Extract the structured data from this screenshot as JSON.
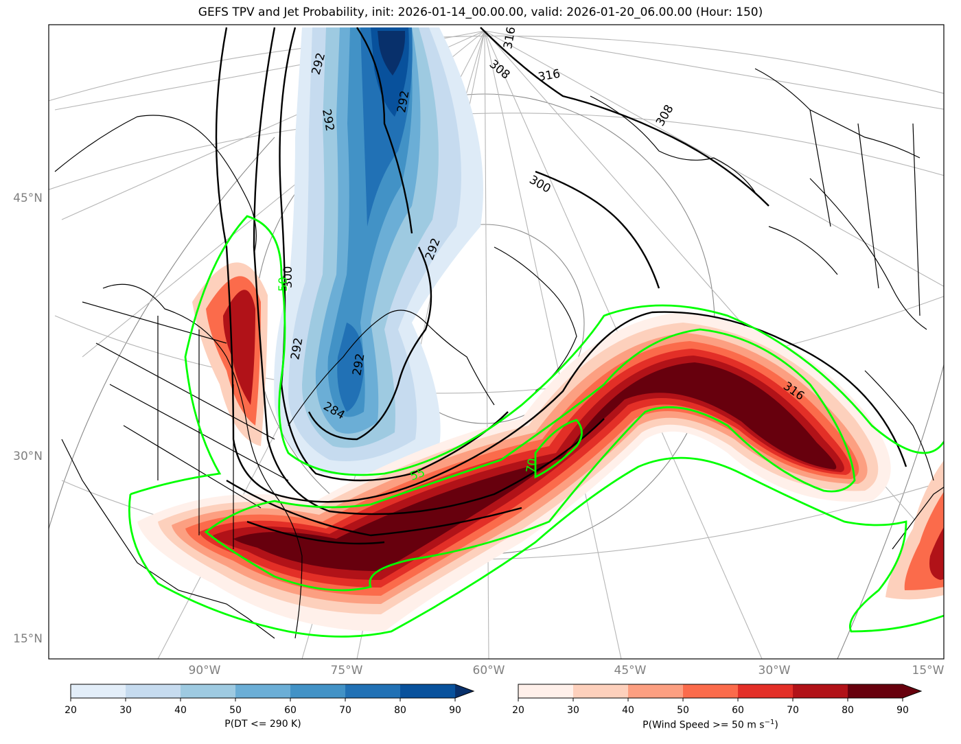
{
  "title": "GEFS TPV and Jet Probability, init: 2026-01-14_00.00.00, valid: 2026-01-20_06.00.00 (Hour: 150)",
  "axes": {
    "lat_labels": [
      "45°N",
      "30°N",
      "15°N"
    ],
    "lon_labels": [
      "90°W",
      "75°W",
      "60°W",
      "45°W",
      "30°W",
      "15°W"
    ]
  },
  "contour_labels": {
    "theta_black": [
      "292",
      "292",
      "292",
      "292",
      "292",
      "300",
      "300",
      "308",
      "308",
      "316",
      "316",
      "316",
      "284",
      "292"
    ],
    "jet_green": [
      "50",
      "55",
      "70"
    ]
  },
  "colors": {
    "blue_ramp": [
      "#e3eef9",
      "#c6dbef",
      "#9ecae1",
      "#6baed6",
      "#4292c6",
      "#2171b5",
      "#08519c",
      "#08306b"
    ],
    "red_ramp": [
      "#fff0ea",
      "#fdd0bc",
      "#fc9f81",
      "#fb6b4b",
      "#e32f27",
      "#b11218",
      "#67000d"
    ],
    "green_contour": "#00ff00",
    "graticule": "#b0b0b0"
  },
  "colorbars": {
    "tpv": {
      "label": "P(DT <= 290 K)",
      "ticks": [
        "20",
        "30",
        "40",
        "50",
        "60",
        "70",
        "80",
        "90"
      ]
    },
    "jet": {
      "label_main": "P(Wind Speed >= 50 m s",
      "label_sup": "−1",
      "label_end": ")",
      "ticks": [
        "20",
        "30",
        "40",
        "50",
        "60",
        "70",
        "80",
        "90"
      ]
    }
  }
}
